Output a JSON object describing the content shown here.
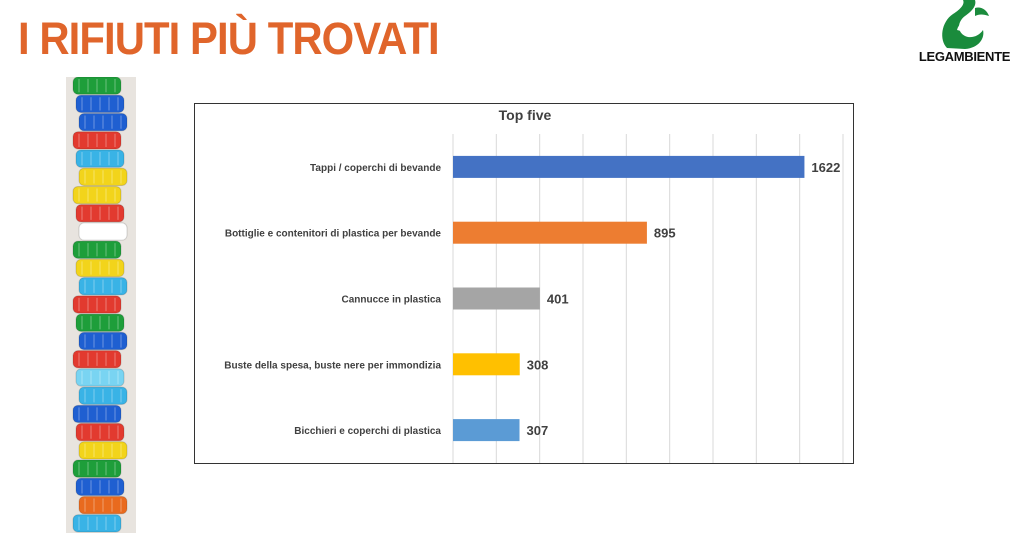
{
  "page": {
    "title": "I RIFIUTI PIÙ TROVATI"
  },
  "logo": {
    "text": "LEGAMBIENTE",
    "icon": "legambiente-swan-icon",
    "color": "#1a8b3c"
  },
  "photo": {
    "icon": "bottle-caps-stack-image"
  },
  "chart_data": {
    "type": "bar",
    "orientation": "horizontal",
    "title": "Top five",
    "categories": [
      "Tappi / coperchi di bevande",
      "Bottiglie e contenitori di plastica per bevande",
      "Cannucce in plastica",
      "Buste della spesa, buste nere per immondizia",
      "Bicchieri e coperchi di plastica"
    ],
    "values": [
      1622,
      895,
      401,
      308,
      307
    ],
    "data_labels": [
      "1622",
      "895",
      "401",
      "308",
      "307"
    ],
    "colors": [
      "#4472c4",
      "#ed7d31",
      "#a5a5a5",
      "#ffc000",
      "#5b9bd5"
    ],
    "xlim": [
      0,
      1800
    ],
    "grid": true,
    "legend": "none"
  }
}
